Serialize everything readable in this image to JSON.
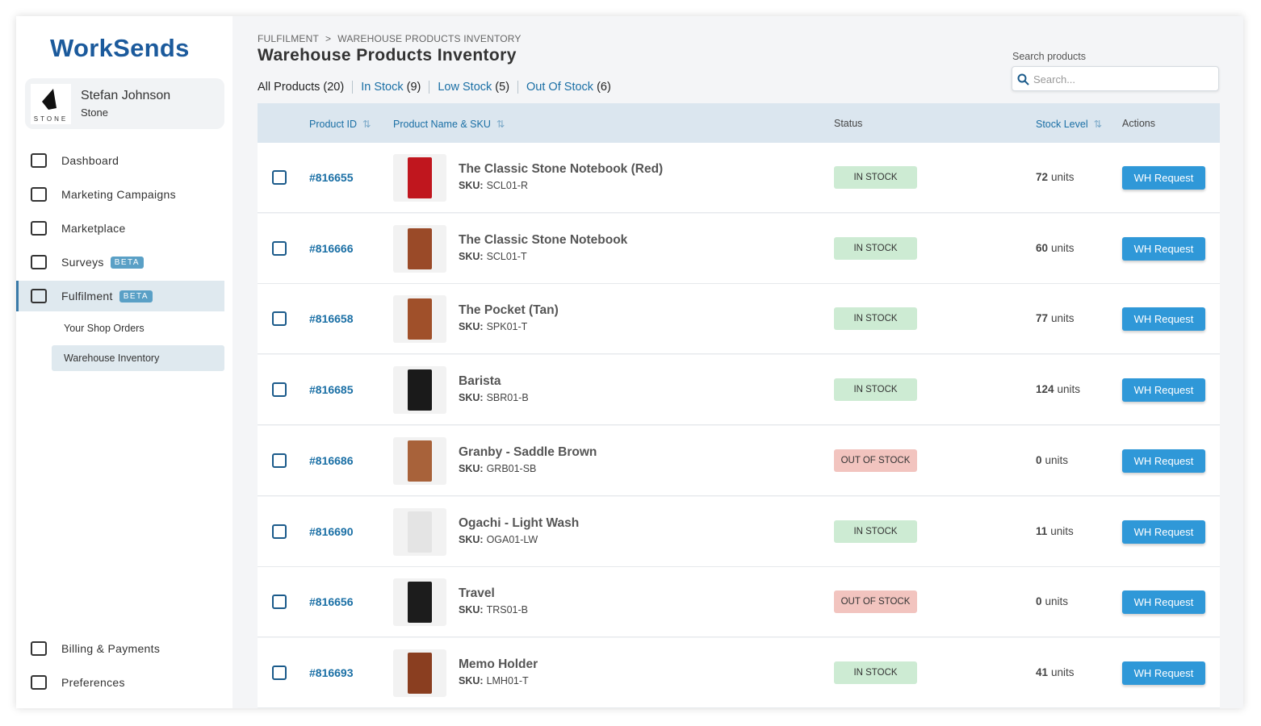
{
  "sidebar": {
    "logo": "WorkSends",
    "user": {
      "name": "Stefan Johnson",
      "company": "Stone",
      "logo_text": "STONE"
    },
    "nav": [
      {
        "label": "Dashboard"
      },
      {
        "label": "Marketing Campaigns"
      },
      {
        "label": "Marketplace"
      },
      {
        "label": "Surveys",
        "badge": "BETA"
      },
      {
        "label": "Fulfilment",
        "badge": "BETA"
      }
    ],
    "subnav": [
      {
        "label": "Your Shop Orders"
      },
      {
        "label": "Warehouse Inventory"
      }
    ],
    "bottom_nav": [
      {
        "label": "Billing & Payments"
      },
      {
        "label": "Preferences"
      }
    ]
  },
  "header": {
    "breadcrumb": [
      "FULFILMENT",
      ">",
      "WAREHOUSE PRODUCTS INVENTORY"
    ],
    "title": "Warehouse Products Inventory",
    "tabs": [
      {
        "label": "All Products",
        "count": "(20)"
      },
      {
        "label": "In Stock",
        "count": "(9)"
      },
      {
        "label": "Low Stock",
        "count": "(5)"
      },
      {
        "label": "Out Of Stock",
        "count": "(6)"
      }
    ],
    "search_label": "Search products",
    "search_placeholder": "Search..."
  },
  "table": {
    "columns": [
      "Product ID",
      "Product Name & SKU",
      "Status",
      "Stock Level",
      "Actions"
    ],
    "sku_label": "SKU:",
    "unit": "units",
    "action": "WH Request",
    "rows": [
      {
        "id": "#816655",
        "name": "The Classic Stone Notebook (Red)",
        "sku": "SCL01-R",
        "status": "IN STOCK",
        "stock": 72
      },
      {
        "id": "#816666",
        "name": "The Classic Stone Notebook",
        "sku": "SCL01-T",
        "status": "IN STOCK",
        "stock": 60
      },
      {
        "id": "#816658",
        "name": "The Pocket (Tan)",
        "sku": "SPK01-T",
        "status": "IN STOCK",
        "stock": 77
      },
      {
        "id": "#816685",
        "name": "Barista",
        "sku": "SBR01-B",
        "status": "IN STOCK",
        "stock": 124
      },
      {
        "id": "#816686",
        "name": "Granby - Saddle Brown",
        "sku": "GRB01-SB",
        "status": "OUT OF STOCK",
        "stock": 0
      },
      {
        "id": "#816690",
        "name": "Ogachi - Light Wash",
        "sku": "OGA01-LW",
        "status": "IN STOCK",
        "stock": 11
      },
      {
        "id": "#816656",
        "name": "Travel",
        "sku": "TRS01-B",
        "status": "OUT OF STOCK",
        "stock": 0
      },
      {
        "id": "#816693",
        "name": "Memo Holder",
        "sku": "LMH01-T",
        "status": "IN STOCK",
        "stock": 41
      }
    ]
  }
}
